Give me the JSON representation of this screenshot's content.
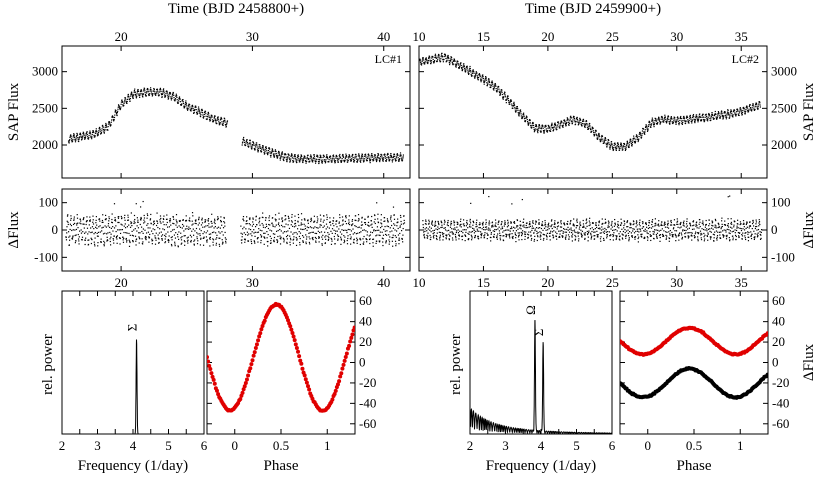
{
  "chart_data": [
    {
      "id": "lc1_flux",
      "type": "scatter",
      "title": "Time (BJD 2458800+)",
      "xlabel": "Time (BJD 2458800+)",
      "ylabel": "SAP Flux",
      "panel_tag": "LC#1",
      "xlim": [
        15.5,
        42
      ],
      "ylim": [
        1550,
        3350
      ],
      "xticks": [
        20,
        30,
        40
      ],
      "yticks": [
        2000,
        2500,
        3000
      ],
      "series": [
        {
          "name": "SAP Flux",
          "x": [
            16,
            18,
            19,
            20,
            21,
            22,
            23,
            24,
            25,
            26,
            27,
            28,
            29.2,
            30,
            31,
            32,
            33,
            34,
            36,
            38,
            40,
            41.5
          ],
          "y": [
            2080,
            2150,
            2250,
            2550,
            2700,
            2720,
            2720,
            2660,
            2530,
            2450,
            2350,
            2300,
            2050,
            2000,
            1930,
            1860,
            1820,
            1810,
            1810,
            1820,
            1830,
            1830
          ]
        }
      ]
    },
    {
      "id": "lc2_flux",
      "type": "scatter",
      "title": "Time (BJD 2459900+)",
      "xlabel": "Time (BJD 2459900+)",
      "ylabel": "SAP Flux",
      "panel_tag": "LC#2",
      "xlim": [
        10,
        37
      ],
      "ylim": [
        1550,
        3350
      ],
      "xticks": [
        10,
        15,
        20,
        25,
        30,
        35
      ],
      "yticks": [
        2000,
        2500,
        3000
      ],
      "series": [
        {
          "name": "SAP Flux",
          "x": [
            10,
            12,
            14,
            15,
            16,
            17,
            18,
            19,
            20,
            21,
            22,
            23,
            24,
            25,
            26,
            27,
            28,
            29,
            30,
            32,
            34,
            35,
            36.5
          ],
          "y": [
            3130,
            3200,
            3000,
            2900,
            2780,
            2600,
            2400,
            2230,
            2220,
            2280,
            2350,
            2280,
            2100,
            1980,
            1980,
            2100,
            2300,
            2350,
            2330,
            2370,
            2420,
            2460,
            2550
          ]
        }
      ]
    },
    {
      "id": "lc1_resid",
      "type": "scatter",
      "xlabel": "",
      "ylabel": "ΔFlux",
      "xlim": [
        15.5,
        42
      ],
      "ylim": [
        -150,
        150
      ],
      "xticks": [
        20,
        30,
        40
      ],
      "yticks": [
        -100,
        0,
        100
      ],
      "series": [
        {
          "name": "residuals",
          "amplitude": 60,
          "outlier_max": 110
        }
      ]
    },
    {
      "id": "lc2_resid",
      "type": "scatter",
      "xlabel": "",
      "ylabel": "ΔFlux",
      "xlim": [
        10,
        37
      ],
      "ylim": [
        -150,
        150
      ],
      "xticks": [
        10,
        15,
        20,
        25,
        30,
        35
      ],
      "yticks": [
        -100,
        0,
        100
      ],
      "series": [
        {
          "name": "residuals",
          "amplitude": 40,
          "outlier_max": 130
        }
      ]
    },
    {
      "id": "lc1_periodogram",
      "type": "line",
      "xlabel": "Frequency (1/day)",
      "ylabel": "rel. power",
      "xlim": [
        2,
        6
      ],
      "ylim": [
        0,
        1.15
      ],
      "xticks": [
        2,
        2.5,
        3,
        3.5,
        4,
        4.5,
        5,
        5.5,
        6
      ],
      "xticklabels": [
        "2",
        "",
        "3",
        "",
        "4",
        "",
        "5",
        "",
        "6"
      ],
      "peaks": [
        {
          "label": "Σ",
          "x": 4.1,
          "height": 0.76
        }
      ]
    },
    {
      "id": "lc1_phase",
      "type": "scatter",
      "xlabel": "Phase",
      "ylabel": "ΔFlux",
      "xlim": [
        -0.3,
        1.3
      ],
      "ylim": [
        -70,
        70
      ],
      "xticks": [
        0,
        0.5,
        1
      ],
      "xticklabels": [
        "0",
        "0.5",
        "1"
      ],
      "yticks": [
        -60,
        -40,
        -20,
        0,
        20,
        40,
        60
      ],
      "series": [
        {
          "name": "folded",
          "color": "#e00000",
          "mean": 5,
          "amplitude": 52,
          "peak_phase": 0.45
        }
      ]
    },
    {
      "id": "lc2_periodogram",
      "type": "line",
      "xlabel": "Frequency (1/day)",
      "ylabel": "rel. power",
      "xlim": [
        2,
        6
      ],
      "ylim": [
        0,
        1.15
      ],
      "xticks": [
        2,
        2.5,
        3,
        3.5,
        4,
        4.5,
        5,
        5.5,
        6
      ],
      "xticklabels": [
        "2",
        "",
        "3",
        "",
        "4",
        "",
        "5",
        "",
        "6"
      ],
      "peaks": [
        {
          "label": "Ω",
          "x": 3.83,
          "height": 0.9
        },
        {
          "label": "Σ",
          "x": 4.06,
          "height": 0.72
        }
      ]
    },
    {
      "id": "lc2_phase",
      "type": "scatter",
      "xlabel": "Phase",
      "ylabel": "ΔFlux",
      "xlim": [
        -0.3,
        1.3
      ],
      "ylim": [
        -70,
        70
      ],
      "xticks": [
        0,
        0.5,
        1
      ],
      "xticklabels": [
        "0",
        "0.5",
        "1"
      ],
      "yticks": [
        -60,
        -40,
        -20,
        0,
        20,
        40,
        60
      ],
      "series": [
        {
          "name": "folded (red)",
          "color": "#e00000",
          "mean": 21,
          "amplitude": 13,
          "peak_phase": 0.45
        },
        {
          "name": "folded (black)",
          "color": "#000000",
          "mean": -20,
          "amplitude": 14,
          "peak_phase": 0.45
        }
      ]
    }
  ]
}
